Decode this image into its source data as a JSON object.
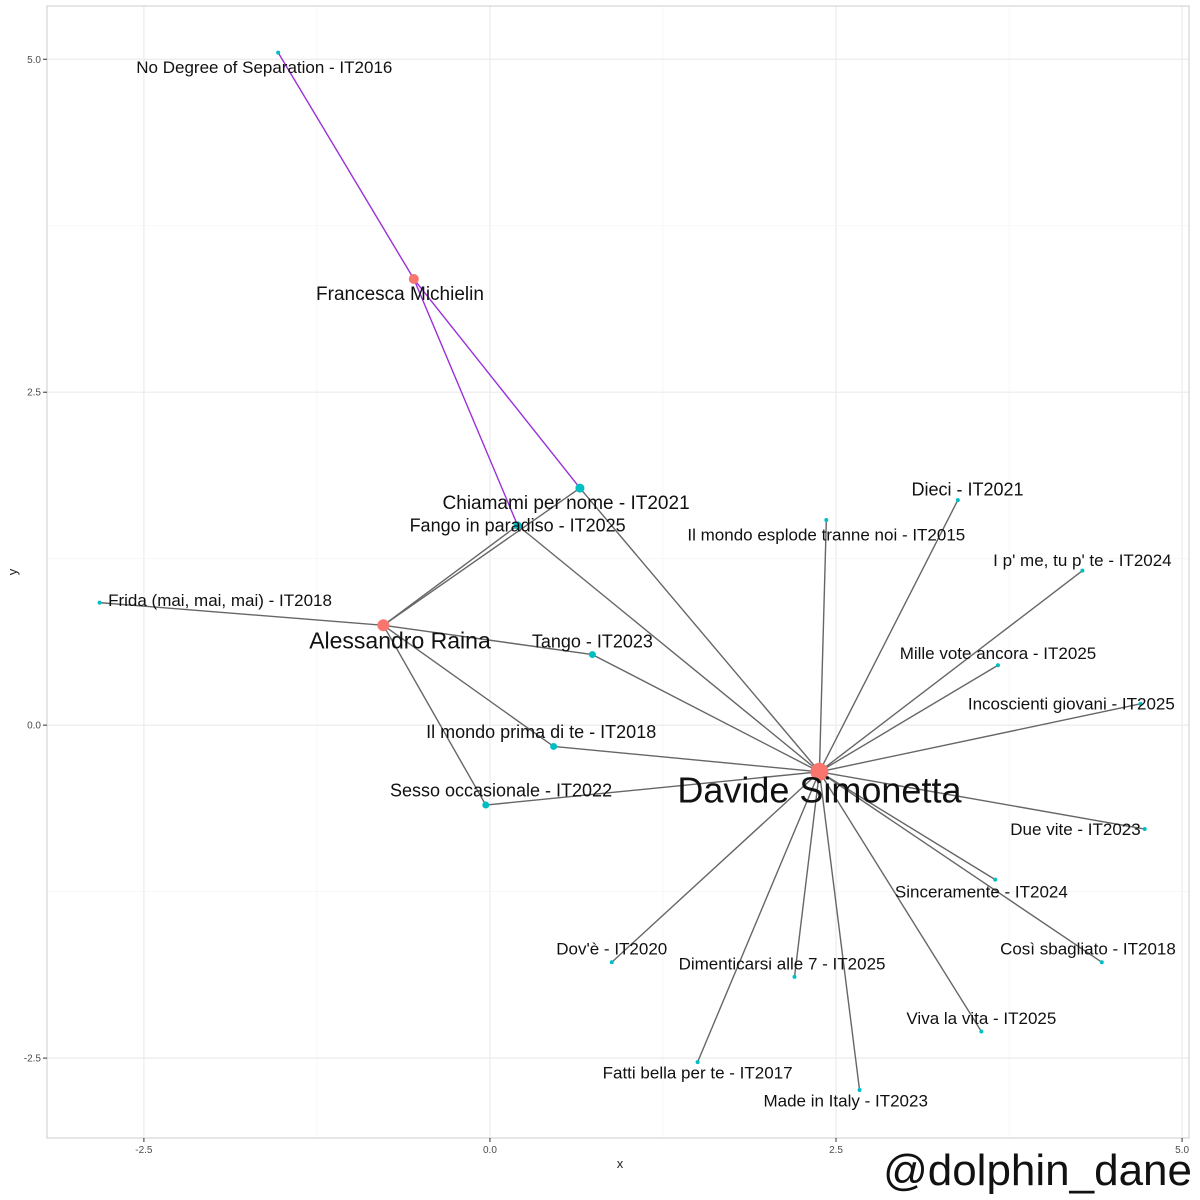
{
  "watermark": "@dolphin_dane",
  "chart_data": {
    "type": "scatter",
    "subtype": "network-graph",
    "xlabel": "x",
    "ylabel": "y",
    "xlim": [
      -3.2,
      5.05
    ],
    "ylim": [
      -3.1,
      5.4
    ],
    "x_ticks": [
      -2.5,
      0.0,
      2.5,
      5.0
    ],
    "x_tick_labels": [
      "-2.5",
      "0.0",
      "2.5",
      "5.0"
    ],
    "y_ticks": [
      -2.5,
      0.0,
      2.5,
      5.0
    ],
    "y_tick_labels": [
      "-2.5",
      "0.0",
      "2.5",
      "5.0"
    ],
    "grid": true,
    "legend": "none",
    "colors": {
      "artist": "#f8766d",
      "song": "#00bfc4",
      "edge_default": "#666666",
      "edge_michielin": "#9b30d9",
      "grid_major": "#ebebeb",
      "grid_minor": "#f5f5f5",
      "panel_border": "#cccccc"
    },
    "nodes": [
      {
        "id": "davide",
        "label": "Davide Simonetta",
        "kind": "artist",
        "x": 2.38,
        "y": -0.35,
        "size": 9,
        "font": 36,
        "lx": 2.38,
        "ly": -0.51
      },
      {
        "id": "raina",
        "label": "Alessandro Raina",
        "kind": "artist",
        "x": -0.77,
        "y": 0.75,
        "size": 6,
        "font": 23,
        "lx": -0.65,
        "ly": 0.62
      },
      {
        "id": "michielin",
        "label": "Francesca Michielin",
        "kind": "artist",
        "x": -0.55,
        "y": 3.35,
        "size": 5,
        "font": 19,
        "lx": -0.65,
        "ly": 3.23
      },
      {
        "id": "nodegree",
        "label": "No Degree of Separation - IT2016",
        "kind": "song",
        "x": -1.53,
        "y": 5.05,
        "size": 2,
        "font": 17,
        "lx": -1.63,
        "ly": 4.93
      },
      {
        "id": "chiamami",
        "label": "Chiamami per nome - IT2021",
        "kind": "song",
        "x": 0.65,
        "y": 1.78,
        "size": 4.5,
        "font": 19,
        "lx": 0.55,
        "ly": 1.66
      },
      {
        "id": "fango",
        "label": "Fango in paradiso - IT2025",
        "kind": "song",
        "x": 0.2,
        "y": 1.5,
        "size": 4,
        "font": 18,
        "lx": 0.2,
        "ly": 1.49
      },
      {
        "id": "frida",
        "label": "Frida (mai, mai, mai) - IT2018",
        "kind": "song",
        "x": -2.82,
        "y": 0.92,
        "size": 2,
        "font": 17,
        "lx": -1.95,
        "ly": 0.93
      },
      {
        "id": "tango",
        "label": "Tango - IT2023",
        "kind": "song",
        "x": 0.74,
        "y": 0.53,
        "size": 3.5,
        "font": 18,
        "lx": 0.74,
        "ly": 0.62
      },
      {
        "id": "mondoprima",
        "label": "Il mondo prima di te - IT2018",
        "kind": "song",
        "x": 0.46,
        "y": -0.16,
        "size": 3.5,
        "font": 18,
        "lx": 0.37,
        "ly": -0.06
      },
      {
        "id": "sesso",
        "label": "Sesso occasionale - IT2022",
        "kind": "song",
        "x": -0.03,
        "y": -0.6,
        "size": 3.5,
        "font": 18,
        "lx": 0.08,
        "ly": -0.5
      },
      {
        "id": "dieci",
        "label": "Dieci - IT2021",
        "kind": "song",
        "x": 3.38,
        "y": 1.69,
        "size": 2,
        "font": 18,
        "lx": 3.45,
        "ly": 1.76
      },
      {
        "id": "mondoesplode",
        "label": "Il mondo esplode tranne noi - IT2015",
        "kind": "song",
        "x": 2.43,
        "y": 1.54,
        "size": 2,
        "font": 17,
        "lx": 2.43,
        "ly": 1.42
      },
      {
        "id": "ipme",
        "label": "I p' me, tu p' te - IT2024",
        "kind": "song",
        "x": 4.28,
        "y": 1.16,
        "size": 2,
        "font": 17,
        "lx": 4.28,
        "ly": 1.23
      },
      {
        "id": "millevote",
        "label": "Mille vote ancora - IT2025",
        "kind": "song",
        "x": 3.67,
        "y": 0.45,
        "size": 2,
        "font": 17,
        "lx": 3.67,
        "ly": 0.53
      },
      {
        "id": "incoscienti",
        "label": "Incoscienti giovani - IT2025",
        "kind": "song",
        "x": 4.7,
        "y": 0.16,
        "size": 2,
        "font": 17,
        "lx": 4.2,
        "ly": 0.15
      },
      {
        "id": "duevite",
        "label": "Due vite - IT2023",
        "kind": "song",
        "x": 4.73,
        "y": -0.78,
        "size": 2,
        "font": 17,
        "lx": 4.23,
        "ly": -0.79
      },
      {
        "id": "sinceramente",
        "label": "Sinceramente - IT2024",
        "kind": "song",
        "x": 3.65,
        "y": -1.16,
        "size": 2,
        "font": 17,
        "lx": 3.55,
        "ly": -1.26
      },
      {
        "id": "cosi",
        "label": "Così sbagliato - IT2018",
        "kind": "song",
        "x": 4.42,
        "y": -1.78,
        "size": 2,
        "font": 17,
        "lx": 4.32,
        "ly": -1.69
      },
      {
        "id": "dove",
        "label": "Dov'è - IT2020",
        "kind": "song",
        "x": 0.88,
        "y": -1.78,
        "size": 2,
        "font": 17,
        "lx": 0.88,
        "ly": -1.69
      },
      {
        "id": "dimenticarsi",
        "label": "Dimenticarsi alle 7 - IT2025",
        "kind": "song",
        "x": 2.2,
        "y": -1.89,
        "size": 2,
        "font": 17,
        "lx": 2.11,
        "ly": -1.8
      },
      {
        "id": "vivalavita",
        "label": "Viva la vita - IT2025",
        "kind": "song",
        "x": 3.55,
        "y": -2.3,
        "size": 2,
        "font": 17,
        "lx": 3.55,
        "ly": -2.21
      },
      {
        "id": "fattibella",
        "label": "Fatti bella per te - IT2017",
        "kind": "song",
        "x": 1.5,
        "y": -2.53,
        "size": 2,
        "font": 17,
        "lx": 1.5,
        "ly": -2.62
      },
      {
        "id": "madeinitaly",
        "label": "Made in Italy - IT2023",
        "kind": "song",
        "x": 2.67,
        "y": -2.74,
        "size": 2,
        "font": 17,
        "lx": 2.57,
        "ly": -2.83
      }
    ],
    "edges": [
      {
        "from": "michielin",
        "to": "nodegree",
        "group": "michielin"
      },
      {
        "from": "michielin",
        "to": "chiamami",
        "group": "michielin"
      },
      {
        "from": "michielin",
        "to": "fango",
        "group": "michielin"
      },
      {
        "from": "raina",
        "to": "fango",
        "group": "default"
      },
      {
        "from": "raina",
        "to": "chiamami",
        "group": "default"
      },
      {
        "from": "raina",
        "to": "frida",
        "group": "default"
      },
      {
        "from": "raina",
        "to": "tango",
        "group": "default"
      },
      {
        "from": "raina",
        "to": "mondoprima",
        "group": "default"
      },
      {
        "from": "raina",
        "to": "sesso",
        "group": "default"
      },
      {
        "from": "davide",
        "to": "chiamami",
        "group": "default"
      },
      {
        "from": "davide",
        "to": "fango",
        "group": "default"
      },
      {
        "from": "davide",
        "to": "tango",
        "group": "default"
      },
      {
        "from": "davide",
        "to": "mondoprima",
        "group": "default"
      },
      {
        "from": "davide",
        "to": "sesso",
        "group": "default"
      },
      {
        "from": "davide",
        "to": "dieci",
        "group": "default"
      },
      {
        "from": "davide",
        "to": "mondoesplode",
        "group": "default"
      },
      {
        "from": "davide",
        "to": "ipme",
        "group": "default"
      },
      {
        "from": "davide",
        "to": "millevote",
        "group": "default"
      },
      {
        "from": "davide",
        "to": "incoscienti",
        "group": "default"
      },
      {
        "from": "davide",
        "to": "duevite",
        "group": "default"
      },
      {
        "from": "davide",
        "to": "sinceramente",
        "group": "default"
      },
      {
        "from": "davide",
        "to": "cosi",
        "group": "default"
      },
      {
        "from": "davide",
        "to": "dove",
        "group": "default"
      },
      {
        "from": "davide",
        "to": "dimenticarsi",
        "group": "default"
      },
      {
        "from": "davide",
        "to": "vivalavita",
        "group": "default"
      },
      {
        "from": "davide",
        "to": "fattibella",
        "group": "default"
      },
      {
        "from": "davide",
        "to": "madeinitaly",
        "group": "default"
      }
    ]
  }
}
